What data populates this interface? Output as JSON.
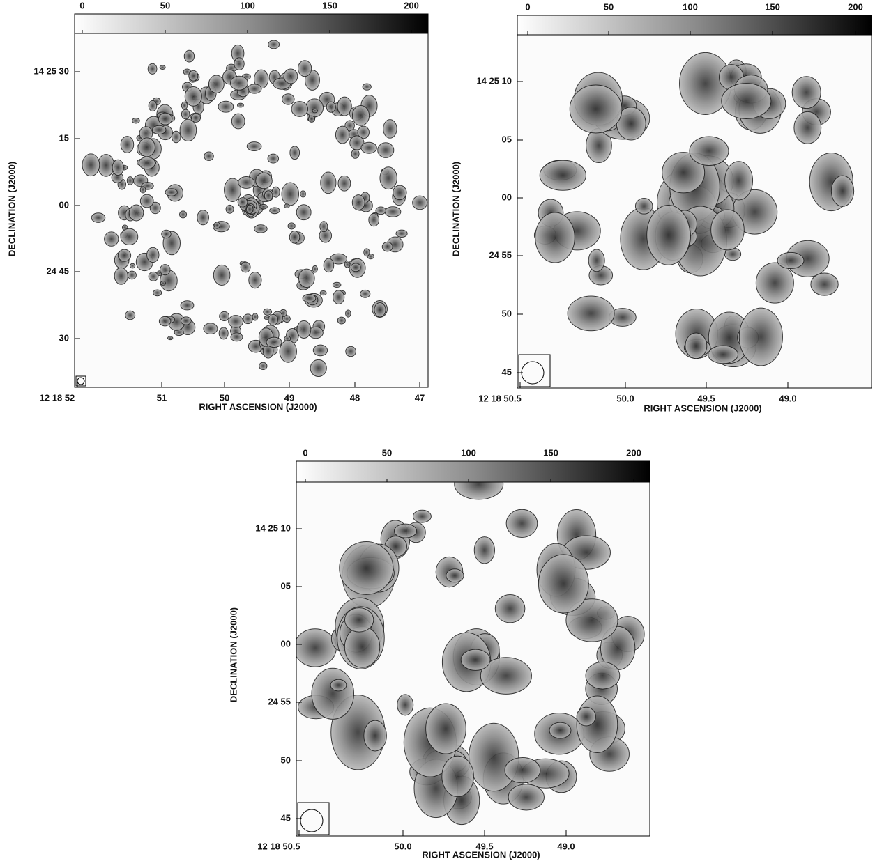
{
  "panels": [
    {
      "colorbar_ticks": [
        "0",
        "50",
        "100",
        "150",
        "200"
      ],
      "y_tick_labels": [
        "14 25 30",
        "15",
        "00",
        "24 45",
        "30"
      ],
      "x_tick_labels": [
        "12 18 52",
        "51",
        "50",
        "49",
        "48",
        "47"
      ],
      "y_label": "DECLINATION (J2000)",
      "x_label": "RIGHT ASCENSION (J2000)"
    },
    {
      "colorbar_ticks": [
        "0",
        "50",
        "100",
        "150",
        "200"
      ],
      "y_tick_labels": [
        "14 25 10",
        "05",
        "00",
        "24 55",
        "50",
        "45"
      ],
      "x_tick_labels": [
        "12 18 50.5",
        "50.0",
        "49.5",
        "49.0"
      ],
      "y_label": "DECLINATION (J2000)",
      "x_label": "RIGHT ASCENSION (J2000)"
    },
    {
      "colorbar_ticks": [
        "0",
        "50",
        "100",
        "150",
        "200"
      ],
      "y_tick_labels": [
        "14 25 10",
        "05",
        "00",
        "24 55",
        "50",
        "45"
      ],
      "x_tick_labels": [
        "12 18 50.5",
        "50.0",
        "49.5",
        "49.0"
      ],
      "y_label": "DECLINATION (J2000)",
      "x_label": "RIGHT ASCENSION (J2000)"
    }
  ]
}
